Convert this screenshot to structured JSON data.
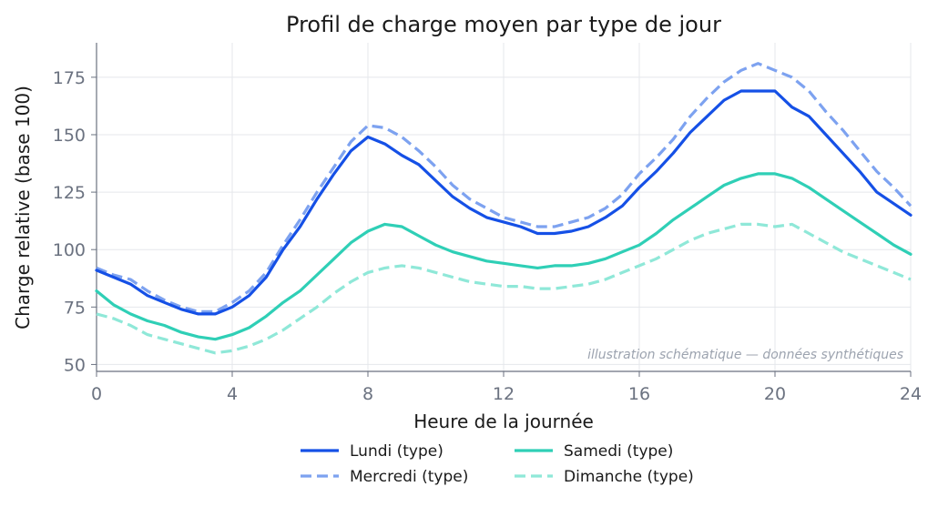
{
  "chart_data": {
    "type": "line",
    "title": "Profil de charge moyen par type de jour",
    "xlabel": "Heure de la journée",
    "ylabel": "Charge relative (base 100)",
    "xlim": [
      0,
      24
    ],
    "ylim": [
      47,
      190
    ],
    "xticks": [
      0,
      4,
      8,
      12,
      16,
      20,
      24
    ],
    "yticks": [
      50,
      75,
      100,
      125,
      150,
      175
    ],
    "grid": true,
    "legend_position": "bottom",
    "annotation": "illustration schématique — données synthétiques",
    "x": [
      0,
      0.5,
      1,
      1.5,
      2,
      2.5,
      3,
      3.5,
      4,
      4.5,
      5,
      5.5,
      6,
      6.5,
      7,
      7.5,
      8,
      8.5,
      9,
      9.5,
      10,
      10.5,
      11,
      11.5,
      12,
      12.5,
      13,
      13.5,
      14,
      14.5,
      15,
      15.5,
      16,
      16.5,
      17,
      17.5,
      18,
      18.5,
      19,
      19.5,
      20,
      20.5,
      21,
      21.5,
      22,
      22.5,
      23,
      23.5,
      24
    ],
    "series": [
      {
        "name": "Lundi (type)",
        "color": "#1550e6",
        "dash": "solid",
        "values": [
          91,
          88,
          85,
          80,
          77,
          74,
          72,
          72,
          75,
          80,
          88,
          100,
          110,
          122,
          133,
          143,
          149,
          146,
          141,
          137,
          130,
          123,
          118,
          114,
          112,
          110,
          107,
          107,
          108,
          110,
          114,
          119,
          127,
          134,
          142,
          151,
          158,
          165,
          169,
          169,
          169,
          162,
          158,
          150,
          142,
          134,
          125,
          120,
          115
        ]
      },
      {
        "name": "Mercredi (type)",
        "color": "#7da2f0",
        "dash": "dashed",
        "values": [
          92,
          89,
          87,
          82,
          78,
          75,
          73,
          73,
          77,
          82,
          90,
          102,
          113,
          125,
          136,
          147,
          154,
          153,
          149,
          143,
          136,
          128,
          122,
          118,
          114,
          112,
          110,
          110,
          112,
          114,
          118,
          124,
          133,
          140,
          148,
          158,
          166,
          173,
          178,
          181,
          178,
          175,
          169,
          160,
          152,
          143,
          134,
          127,
          119
        ]
      },
      {
        "name": "Samedi (type)",
        "color": "#2fcfb6",
        "dash": "solid",
        "values": [
          82,
          76,
          72,
          69,
          67,
          64,
          62,
          61,
          63,
          66,
          71,
          77,
          82,
          89,
          96,
          103,
          108,
          111,
          110,
          106,
          102,
          99,
          97,
          95,
          94,
          93,
          92,
          93,
          93,
          94,
          96,
          99,
          102,
          107,
          113,
          118,
          123,
          128,
          131,
          133,
          133,
          131,
          127,
          122,
          117,
          112,
          107,
          102,
          98
        ]
      },
      {
        "name": "Dimanche (type)",
        "color": "#8fe8d8",
        "dash": "dashed",
        "values": [
          72,
          70,
          67,
          63,
          61,
          59,
          57,
          55,
          56,
          58,
          61,
          65,
          70,
          75,
          81,
          86,
          90,
          92,
          93,
          92,
          90,
          88,
          86,
          85,
          84,
          84,
          83,
          83,
          84,
          85,
          87,
          90,
          93,
          96,
          100,
          104,
          107,
          109,
          111,
          111,
          110,
          111,
          107,
          103,
          99,
          96,
          93,
          90,
          87
        ]
      }
    ]
  }
}
